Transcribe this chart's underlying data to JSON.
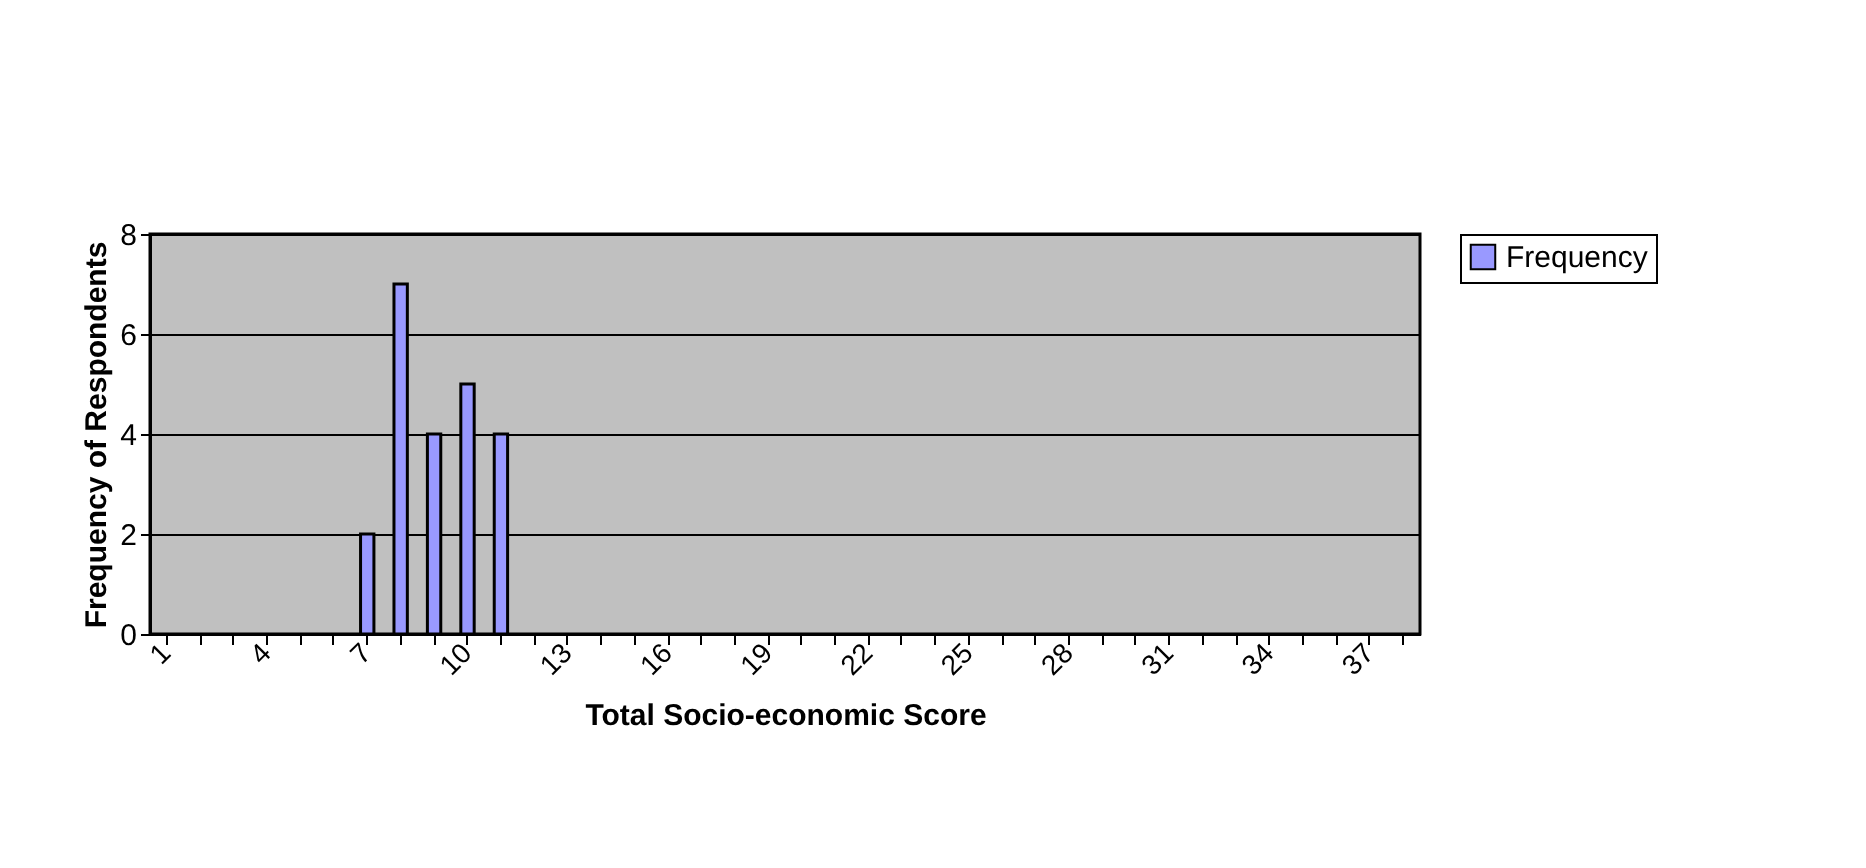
{
  "chart_data": {
    "type": "bar",
    "xlabel": "Total Socio-economic Score",
    "ylabel": "Frequency of Respondents",
    "categories": [
      "1",
      null,
      null,
      "4",
      null,
      null,
      "7",
      null,
      null,
      "10",
      null,
      null,
      "13",
      null,
      null,
      "16",
      null,
      null,
      "19",
      null,
      null,
      "22",
      null,
      null,
      "25",
      null,
      null,
      "28",
      null,
      null,
      "31",
      null,
      null,
      "34",
      null,
      null,
      "37",
      null
    ],
    "series": [
      {
        "name": "Frequency",
        "color": "#9999ff",
        "values": [
          null,
          null,
          null,
          null,
          null,
          null,
          2,
          7,
          4,
          5,
          4,
          null,
          null,
          null,
          null,
          null,
          null,
          null,
          null,
          null,
          null,
          null,
          null,
          null,
          null,
          null,
          null,
          null,
          null,
          null,
          null,
          null,
          null,
          null,
          null,
          null,
          null,
          null
        ]
      }
    ],
    "ylim": [
      0,
      8
    ],
    "yticks": [
      0,
      2,
      4,
      6,
      8
    ],
    "grid": "y",
    "legend": "right"
  }
}
